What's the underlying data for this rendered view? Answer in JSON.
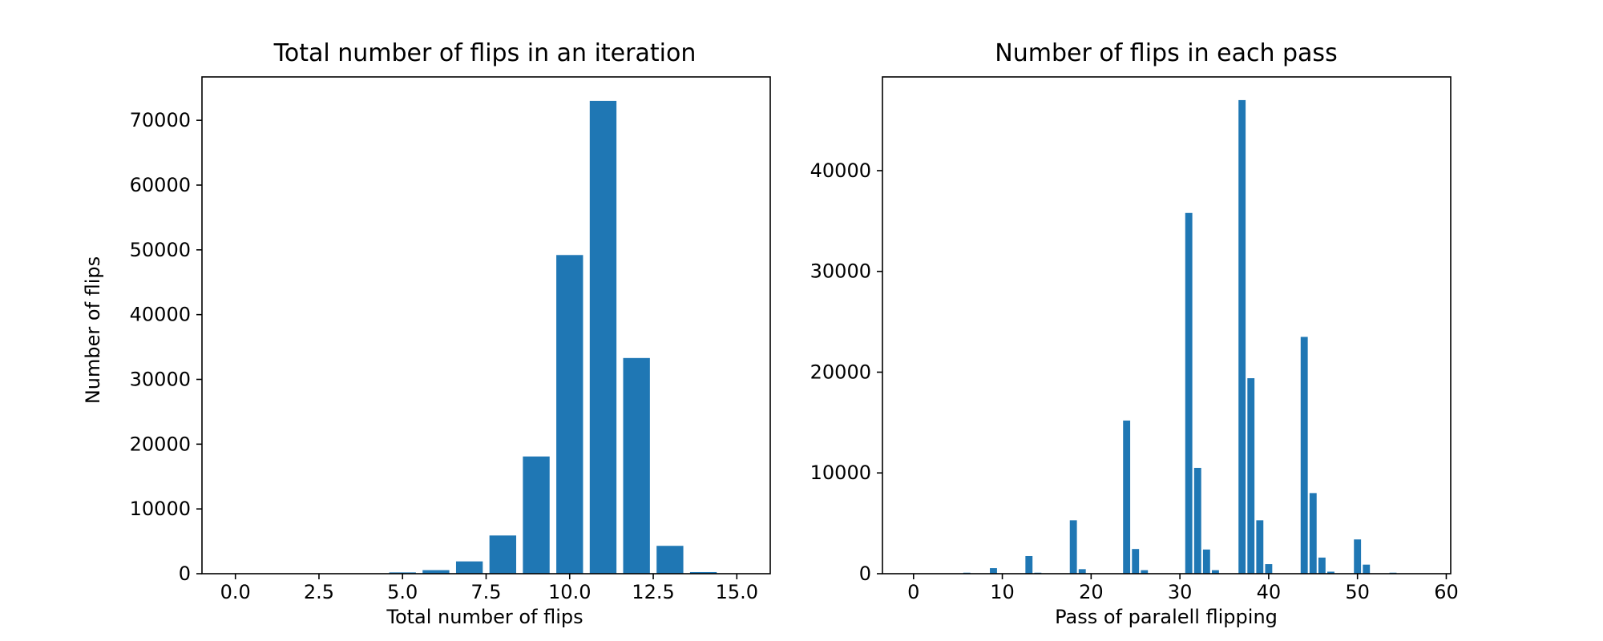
{
  "colors": {
    "bar": "#1f77b4",
    "axis": "#000000",
    "background": "#ffffff"
  },
  "chart_data": [
    {
      "type": "bar",
      "title": "Total number of flips in an iteration",
      "xlabel": "Total number of flips",
      "ylabel": "Number of flips",
      "xlim": [
        -1.0,
        16.0
      ],
      "ylim": [
        0,
        76700
      ],
      "xticks": [
        0.0,
        2.5,
        5.0,
        7.5,
        10.0,
        12.5,
        15.0
      ],
      "xtick_labels": [
        "0.0",
        "2.5",
        "5.0",
        "7.5",
        "10.0",
        "12.5",
        "15.0"
      ],
      "yticks": [
        0,
        10000,
        20000,
        30000,
        40000,
        50000,
        60000,
        70000
      ],
      "ytick_labels": [
        "0",
        "10000",
        "20000",
        "30000",
        "40000",
        "50000",
        "60000",
        "70000"
      ],
      "bar_width": 0.8,
      "grid": false,
      "x": [
        0,
        1,
        2,
        3,
        4,
        5,
        6,
        7,
        8,
        9,
        10,
        11,
        12,
        13,
        14,
        15
      ],
      "values": [
        0,
        0,
        0,
        0,
        0,
        200,
        550,
        1900,
        5900,
        18100,
        49200,
        73000,
        33300,
        4300,
        250,
        20
      ]
    },
    {
      "type": "bar",
      "title": "Number of flips in each pass",
      "xlabel": "Pass of paralell flipping",
      "ylabel": "",
      "xlim": [
        -3.5,
        60.5
      ],
      "ylim": [
        0,
        49300
      ],
      "xticks": [
        0,
        10,
        20,
        30,
        40,
        50,
        60
      ],
      "xtick_labels": [
        "0",
        "10",
        "20",
        "30",
        "40",
        "50",
        "60"
      ],
      "yticks": [
        0,
        10000,
        20000,
        30000,
        40000
      ],
      "ytick_labels": [
        "0",
        "10000",
        "20000",
        "30000",
        "40000"
      ],
      "bar_width": 0.8,
      "grid": false,
      "x": [
        6,
        9,
        13,
        14,
        18,
        19,
        24,
        25,
        26,
        31,
        32,
        33,
        34,
        37,
        38,
        39,
        40,
        44,
        45,
        46,
        47,
        50,
        51,
        54
      ],
      "values": [
        100,
        550,
        1750,
        100,
        5300,
        450,
        15200,
        2450,
        350,
        35800,
        10500,
        2400,
        350,
        47000,
        19400,
        5300,
        950,
        23500,
        8000,
        1600,
        200,
        3400,
        900,
        100
      ]
    }
  ]
}
